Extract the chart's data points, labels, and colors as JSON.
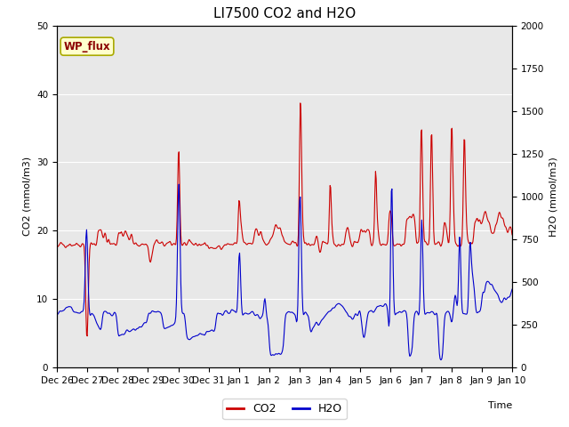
{
  "title": "LI7500 CO2 and H2O",
  "xlabel": "Time",
  "ylabel_left": "CO2 (mmol/m3)",
  "ylabel_right": "H2O (mmol/m3)",
  "co2_color": "#cc0000",
  "h2o_color": "#0000cc",
  "ylim_left": [
    0,
    50
  ],
  "ylim_right": [
    0,
    2000
  ],
  "legend_labels": [
    "CO2",
    "H2O"
  ],
  "annotation_text": "WP_flux",
  "bg_color": "#e8e8e8",
  "title_fontsize": 11,
  "axis_fontsize": 8,
  "tick_fontsize": 7.5
}
